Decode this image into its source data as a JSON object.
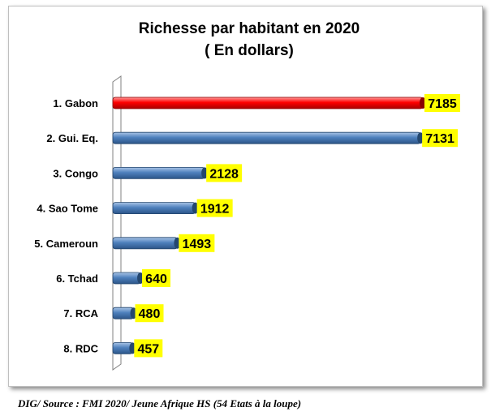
{
  "chart_data": {
    "type": "bar",
    "orientation": "horizontal",
    "title": "Richesse par habitant en 2020",
    "subtitle": "( En dollars)",
    "categories": [
      "1. Gabon",
      "2. Gui. Eq.",
      "3. Congo",
      "4. Sao Tome",
      "5. Cameroun",
      "6. Tchad",
      "7. RCA",
      "8. RDC"
    ],
    "values": [
      7185,
      7131,
      2128,
      1912,
      1493,
      640,
      480,
      457
    ],
    "value_labels": [
      "7185",
      "7131",
      "2128",
      "1912",
      "1493",
      "640",
      "480",
      "457"
    ],
    "bar_colors": [
      "#ff0000",
      "#4f81bd",
      "#4f81bd",
      "#4f81bd",
      "#4f81bd",
      "#4f81bd",
      "#4f81bd",
      "#4f81bd"
    ],
    "label_background": "#ffff00",
    "xlim": [
      0,
      7185
    ],
    "grid": false,
    "legend": "none"
  },
  "source": "DIG/ Source : FMI  2020/ Jeune Afrique HS (54 Etats à la loupe)"
}
